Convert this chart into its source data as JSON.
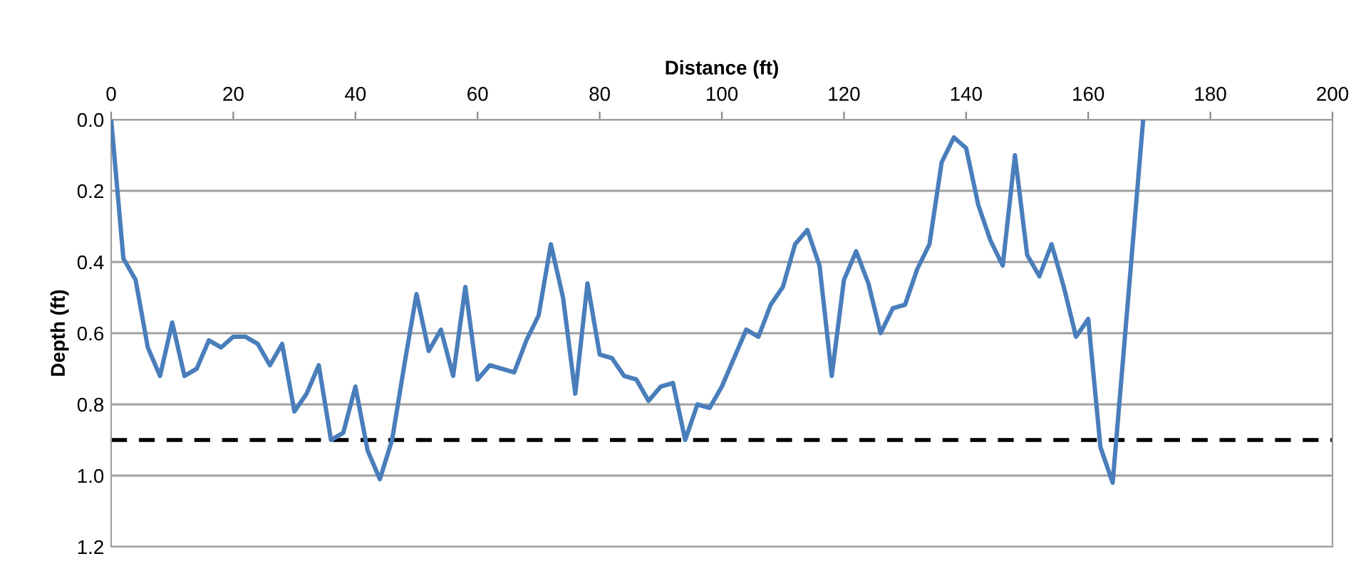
{
  "chart_data": {
    "type": "line",
    "xlabel": "Distance (ft)",
    "ylabel": "Depth (ft)",
    "x": [
      0,
      2,
      4,
      6,
      8,
      10,
      12,
      14,
      16,
      18,
      20,
      22,
      24,
      26,
      28,
      30,
      32,
      34,
      36,
      38,
      40,
      42,
      44,
      46,
      48,
      50,
      52,
      54,
      56,
      58,
      60,
      62,
      64,
      66,
      68,
      70,
      72,
      74,
      76,
      78,
      80,
      82,
      84,
      86,
      88,
      90,
      92,
      94,
      96,
      98,
      100,
      102,
      104,
      106,
      108,
      110,
      112,
      114,
      116,
      118,
      120,
      122,
      124,
      126,
      128,
      130,
      132,
      134,
      136,
      138,
      140,
      142,
      144,
      146,
      148,
      150,
      152,
      154,
      156,
      158,
      160,
      162,
      164,
      169
    ],
    "series": [
      {
        "color": "#4a7ebb",
        "values": [
          0.0,
          0.39,
          0.45,
          0.64,
          0.72,
          0.57,
          0.72,
          0.7,
          0.62,
          0.64,
          0.61,
          0.61,
          0.63,
          0.69,
          0.63,
          0.82,
          0.77,
          0.69,
          0.9,
          0.88,
          0.75,
          0.93,
          1.01,
          0.9,
          0.69,
          0.49,
          0.65,
          0.59,
          0.72,
          0.47,
          0.73,
          0.69,
          0.7,
          0.71,
          0.62,
          0.55,
          0.35,
          0.5,
          0.77,
          0.46,
          0.66,
          0.67,
          0.72,
          0.73,
          0.79,
          0.75,
          0.74,
          0.9,
          0.8,
          0.81,
          0.75,
          0.67,
          0.59,
          0.61,
          0.52,
          0.47,
          0.35,
          0.31,
          0.41,
          0.72,
          0.45,
          0.37,
          0.46,
          0.6,
          0.53,
          0.52,
          0.42,
          0.35,
          0.12,
          0.05,
          0.08,
          0.24,
          0.34,
          0.41,
          0.1,
          0.38,
          0.44,
          0.35,
          0.47,
          0.61,
          0.56,
          0.92,
          1.02,
          0.0
        ]
      }
    ],
    "xlim": [
      0,
      200
    ],
    "xticks": [
      0,
      20,
      40,
      60,
      80,
      100,
      120,
      140,
      160,
      180,
      200
    ],
    "ylim": [
      1.2,
      0.0
    ],
    "yticks": [
      {
        "value": 0.0,
        "label": "0.0"
      },
      {
        "value": 0.2,
        "label": "0.2"
      },
      {
        "value": 0.4,
        "label": "0.4"
      },
      {
        "value": 0.6,
        "label": "0.6"
      },
      {
        "value": 0.8,
        "label": "0.8"
      },
      {
        "value": 1.0,
        "label": "1.0"
      },
      {
        "value": 1.2,
        "label": "1.2"
      }
    ],
    "grid": "y",
    "marker": "none",
    "line_style": "solid",
    "ref_lines": [
      {
        "axis": "y",
        "value": 0.9,
        "color": "#000000",
        "line_style": "dashed"
      }
    ]
  }
}
